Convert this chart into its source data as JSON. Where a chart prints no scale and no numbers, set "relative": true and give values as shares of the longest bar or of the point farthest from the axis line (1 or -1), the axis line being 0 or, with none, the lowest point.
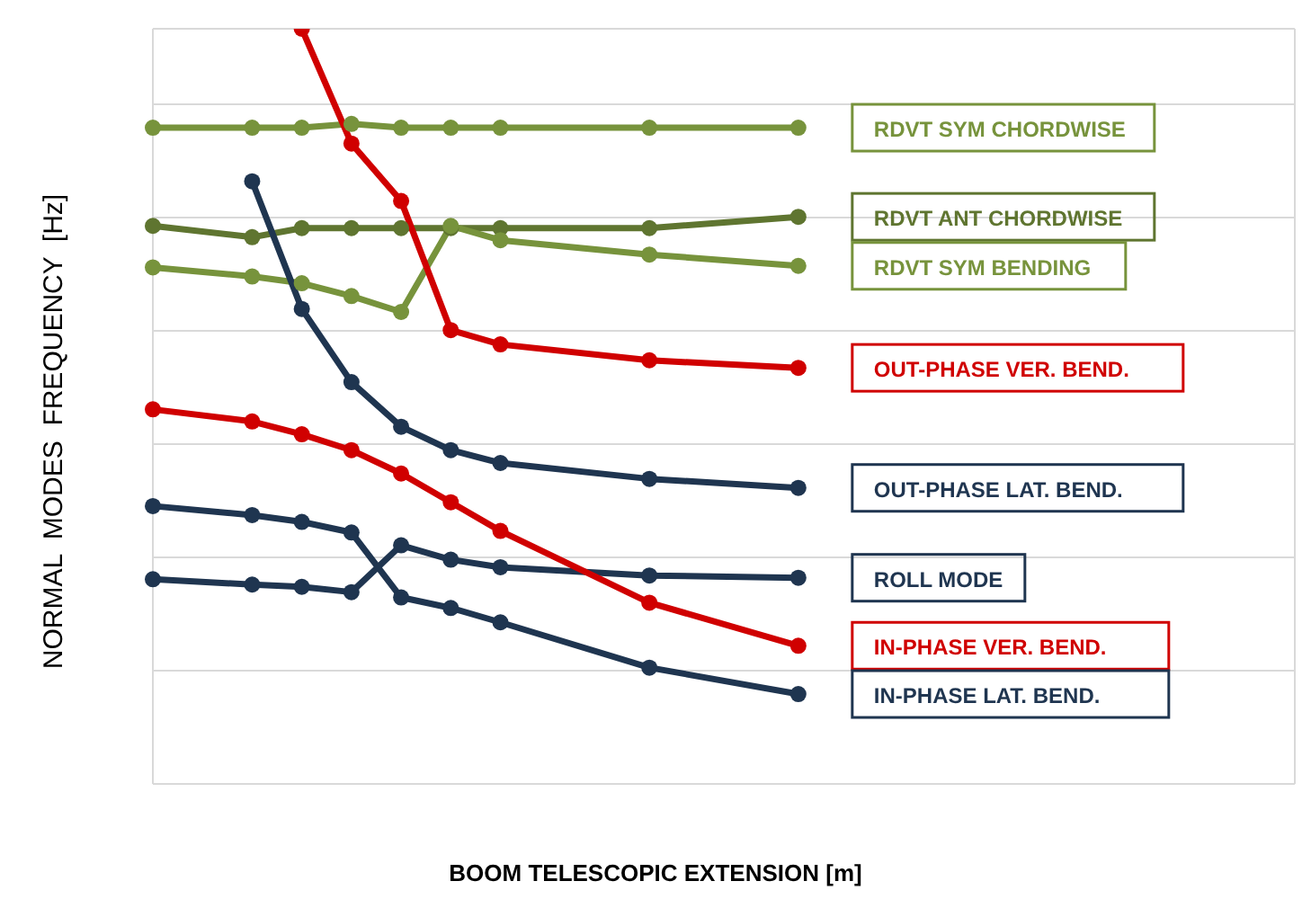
{
  "chart_data": {
    "type": "line",
    "relative": true,
    "xlabel": "BOOM TELESCOPIC EXTENSION [m]",
    "ylabel": "NORMAL  MODES  FREQUENCY  [Hz]",
    "grid": true,
    "marker": "circle",
    "line_style": "solid",
    "categories": [
      null,
      null,
      null,
      null,
      null,
      null,
      null,
      null,
      null,
      null,
      null,
      null,
      null,
      null,
      null,
      null,
      null,
      null,
      null,
      null,
      null,
      null,
      null,
      null
    ],
    "series": [
      {
        "name": "RDVT SYM CHORDWISE",
        "color": "#77933c",
        "values": [
          0.869,
          null,
          0.869,
          0.869,
          0.874,
          0.869,
          0.869,
          0.869,
          null,
          null,
          0.869,
          null,
          null,
          0.869,
          null,
          null,
          null,
          null,
          null,
          null,
          null,
          null,
          null,
          null
        ]
      },
      {
        "name": "RDVT ANT CHORDWISE",
        "color": "#5f7530",
        "values": [
          0.739,
          null,
          0.724,
          0.736,
          0.736,
          0.736,
          0.736,
          0.736,
          null,
          null,
          0.736,
          null,
          null,
          0.751,
          null,
          null,
          null,
          null,
          null,
          null,
          null,
          null,
          null,
          null
        ]
      },
      {
        "name": "RDVT SYM BENDING",
        "color": "#77933c",
        "values": [
          0.684,
          null,
          0.672,
          0.663,
          0.646,
          0.625,
          0.739,
          0.72,
          null,
          null,
          0.701,
          null,
          null,
          0.686,
          null,
          null,
          null,
          null,
          null,
          null,
          null,
          null,
          null,
          null
        ]
      },
      {
        "name": "OUT-PHASE VER. BEND.",
        "color": "#d00000",
        "values": [
          null,
          null,
          null,
          1.0,
          0.848,
          0.772,
          0.601,
          0.582,
          null,
          null,
          0.561,
          null,
          null,
          0.551,
          null,
          null,
          null,
          null,
          null,
          null,
          null,
          null,
          null,
          null
        ]
      },
      {
        "name": "OUT-PHASE LAT. BEND.",
        "color": "#1f3550",
        "values": [
          null,
          null,
          0.798,
          0.629,
          0.532,
          0.473,
          0.442,
          0.425,
          null,
          null,
          0.404,
          null,
          null,
          0.392,
          null,
          null,
          null,
          null,
          null,
          null,
          null,
          null,
          null,
          null
        ]
      },
      {
        "name": "ROLL MODE",
        "color": "#1f3550",
        "values": [
          0.271,
          null,
          0.264,
          0.261,
          0.254,
          0.316,
          0.297,
          0.287,
          null,
          null,
          0.276,
          null,
          null,
          0.273,
          null,
          null,
          null,
          null,
          null,
          null,
          null,
          null,
          null,
          null
        ]
      },
      {
        "name": "IN-PHASE VER. BEND.",
        "color": "#d00000",
        "values": [
          0.496,
          null,
          0.48,
          0.463,
          0.442,
          0.411,
          0.373,
          0.335,
          null,
          null,
          0.24,
          null,
          null,
          0.183,
          null,
          null,
          null,
          null,
          null,
          null,
          null,
          null,
          null,
          null
        ]
      },
      {
        "name": "IN-PHASE LAT. BEND.",
        "color": "#1f3550",
        "values": [
          0.368,
          null,
          0.356,
          0.347,
          0.333,
          0.247,
          0.233,
          0.214,
          null,
          null,
          0.154,
          null,
          null,
          0.119,
          null,
          null,
          null,
          null,
          null,
          null,
          null,
          null,
          null,
          null
        ]
      }
    ]
  }
}
